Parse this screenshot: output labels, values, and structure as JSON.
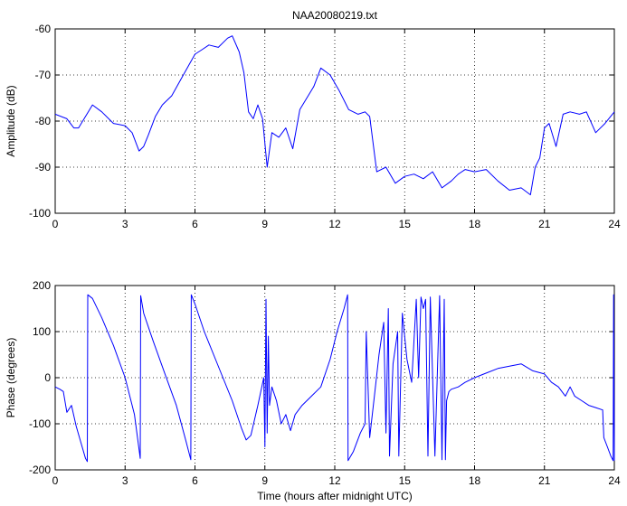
{
  "chart_data": [
    {
      "type": "line",
      "title": "NAA20080219.txt",
      "xlabel": "",
      "ylabel": "Amplitude (dB)",
      "xlim": [
        0,
        24
      ],
      "ylim": [
        -100,
        -60
      ],
      "xticks": [
        0,
        3,
        6,
        9,
        12,
        15,
        18,
        21,
        24
      ],
      "yticks": [
        -100,
        -90,
        -80,
        -70,
        -60
      ],
      "grid": true,
      "series": [
        {
          "name": "",
          "color": "#0000ff",
          "x": [
            0,
            0.5,
            0.8,
            1.0,
            1.3,
            1.6,
            2.0,
            2.5,
            3.0,
            3.3,
            3.6,
            3.8,
            4.0,
            4.3,
            4.6,
            5.0,
            5.5,
            6.0,
            6.3,
            6.6,
            7.0,
            7.4,
            7.6,
            7.9,
            8.1,
            8.3,
            8.5,
            8.7,
            8.9,
            9.1,
            9.3,
            9.6,
            9.9,
            10.2,
            10.5,
            10.8,
            11.1,
            11.4,
            11.8,
            12.2,
            12.6,
            13.0,
            13.3,
            13.5,
            13.8,
            14.2,
            14.6,
            15.0,
            15.4,
            15.8,
            16.2,
            16.6,
            17.0,
            17.3,
            17.6,
            18.0,
            18.5,
            19.0,
            19.5,
            20.0,
            20.4,
            20.6,
            20.8,
            21.0,
            21.2,
            21.5,
            21.8,
            22.1,
            22.5,
            22.8,
            23.2,
            23.6,
            24.0
          ],
          "y": [
            -78.5,
            -79.5,
            -81.5,
            -81.5,
            -79.0,
            -76.5,
            -78.0,
            -80.5,
            -81.0,
            -82.5,
            -86.5,
            -85.5,
            -83.0,
            -79.0,
            -76.5,
            -74.5,
            -70.0,
            -65.5,
            -64.5,
            -63.5,
            -64.0,
            -62.0,
            -61.5,
            -65.0,
            -69.5,
            -78.0,
            -79.5,
            -76.5,
            -79.5,
            -90.0,
            -82.5,
            -83.5,
            -81.5,
            -86.0,
            -77.5,
            -75.0,
            -72.5,
            -68.5,
            -70.0,
            -73.5,
            -77.5,
            -78.5,
            -78.0,
            -79.0,
            -91.0,
            -90.0,
            -93.5,
            -92.0,
            -91.5,
            -92.5,
            -91.0,
            -94.5,
            -93.0,
            -91.5,
            -90.5,
            -91.0,
            -90.5,
            -93.0,
            -95.0,
            -94.5,
            -96.0,
            -90.0,
            -88.0,
            -81.5,
            -80.5,
            -85.5,
            -78.5,
            -78.0,
            -78.5,
            -78.0,
            -82.5,
            -80.5,
            -78.0
          ]
        }
      ]
    },
    {
      "type": "line",
      "title": "",
      "xlabel": "Time (hours after midnight UTC)",
      "ylabel": "Phase (degrees)",
      "xlim": [
        0,
        24
      ],
      "ylim": [
        -200,
        200
      ],
      "xticks": [
        0,
        3,
        6,
        9,
        12,
        15,
        18,
        21,
        24
      ],
      "yticks": [
        -200,
        -100,
        0,
        100,
        200
      ],
      "grid": true,
      "series": [
        {
          "name": "",
          "color": "#0000ff",
          "x": [
            0.0,
            0.2,
            0.35,
            0.5,
            0.7,
            0.9,
            1.1,
            1.3,
            1.38,
            1.4,
            1.6,
            2.0,
            2.5,
            3.0,
            3.4,
            3.65,
            3.67,
            3.8,
            4.2,
            4.7,
            5.2,
            5.6,
            5.82,
            5.84,
            6.0,
            6.4,
            6.8,
            7.2,
            7.6,
            8.0,
            8.2,
            8.4,
            8.7,
            8.95,
            9.0,
            9.05,
            9.1,
            9.15,
            9.2,
            9.3,
            9.5,
            9.7,
            9.9,
            10.1,
            10.3,
            10.6,
            11.0,
            11.4,
            11.8,
            12.1,
            12.4,
            12.55,
            12.57,
            12.8,
            13.1,
            13.3,
            13.35,
            13.5,
            13.7,
            13.9,
            14.1,
            14.2,
            14.3,
            14.35,
            14.5,
            14.7,
            14.75,
            14.9,
            15.1,
            15.3,
            15.5,
            15.6,
            15.7,
            15.8,
            15.9,
            16.0,
            16.1,
            16.3,
            16.5,
            16.6,
            16.7,
            16.75,
            16.8,
            16.9,
            17.0,
            17.3,
            17.6,
            18.0,
            18.5,
            19.0,
            19.5,
            20.0,
            20.5,
            21.0,
            21.3,
            21.6,
            21.9,
            22.1,
            22.3,
            22.6,
            22.9,
            23.2,
            23.5,
            23.55,
            23.7,
            23.85,
            23.95,
            23.97,
            24.0
          ],
          "y": [
            -20,
            -25,
            -30,
            -75,
            -60,
            -105,
            -140,
            -175,
            -182,
            180,
            172,
            130,
            70,
            0,
            -80,
            -175,
            178,
            140,
            80,
            10,
            -60,
            -135,
            -178,
            180,
            160,
            100,
            50,
            0,
            -50,
            -110,
            -135,
            -125,
            -60,
            0,
            -150,
            170,
            -120,
            90,
            -60,
            -20,
            -50,
            -100,
            -80,
            -115,
            -80,
            -60,
            -40,
            -20,
            40,
            100,
            150,
            180,
            -180,
            -160,
            -120,
            -100,
            100,
            -130,
            -40,
            50,
            120,
            -120,
            150,
            -170,
            30,
            100,
            -170,
            140,
            40,
            -10,
            170,
            0,
            175,
            150,
            170,
            -170,
            175,
            -170,
            178,
            -178,
            170,
            -178,
            -50,
            -30,
            -25,
            -20,
            -10,
            0,
            10,
            20,
            25,
            30,
            15,
            8,
            -10,
            -20,
            -40,
            -20,
            -40,
            -50,
            -60,
            -65,
            -70,
            -130,
            -150,
            -170,
            -180,
            180,
            -180
          ]
        }
      ]
    }
  ]
}
